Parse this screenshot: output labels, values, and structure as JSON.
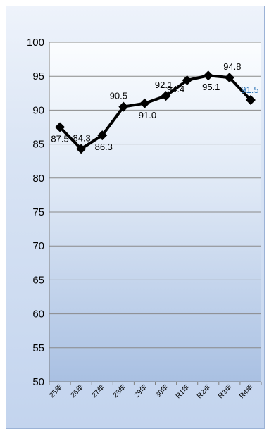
{
  "chart_data": {
    "type": "line",
    "categories": [
      "25年",
      "26年",
      "27年",
      "28年",
      "29年",
      "30年",
      "R1年",
      "R2年",
      "R3年",
      "R4年"
    ],
    "series": [
      {
        "values": [
          87.5,
          84.3,
          86.3,
          90.5,
          91.0,
          92.1,
          94.4,
          95.1,
          94.8,
          91.5
        ]
      }
    ],
    "data_labels": [
      "87.5",
      "84.3",
      "86.3",
      "90.5",
      "91.0",
      "92.1",
      "94.4",
      "95.1",
      "94.8",
      "91.5"
    ],
    "ylim": [
      50,
      100
    ],
    "yticks": [
      50,
      55,
      60,
      65,
      70,
      75,
      80,
      85,
      90,
      95,
      100
    ],
    "grid": true,
    "legend": "none",
    "colors": {
      "line": "#000000",
      "marker": "#000000",
      "grid": "#8a8a8a",
      "last_label": "#2e75b6",
      "label": "#000000"
    }
  }
}
